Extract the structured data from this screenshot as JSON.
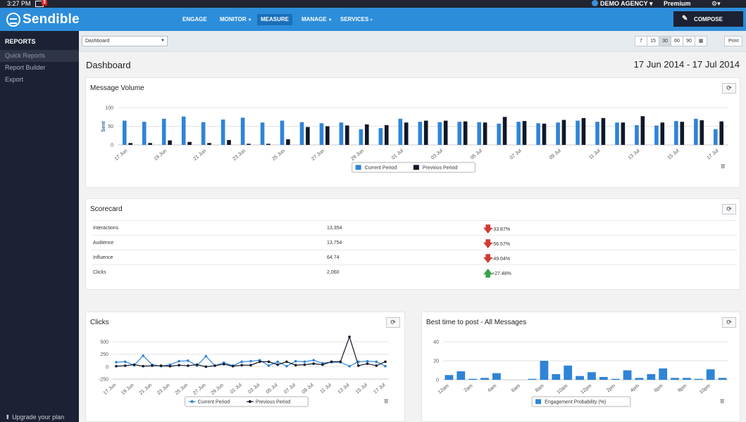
{
  "system": {
    "time": "3:27 PM",
    "mail_count": "3",
    "agency": "DEMO AGENCY",
    "plan": "Premium"
  },
  "nav": {
    "logo": "Sendible",
    "items": [
      {
        "label": "ENGAGE",
        "caret": false
      },
      {
        "label": "MONITOR",
        "caret": true
      },
      {
        "label": "MEASURE",
        "caret": false
      },
      {
        "label": "MANAGE",
        "caret": true
      },
      {
        "label": "SERVICES",
        "caret": false
      }
    ],
    "active": "MEASURE",
    "services_plus": "+",
    "compose_label": "COMPOSE"
  },
  "sidebar": {
    "title": "REPORTS",
    "items": [
      "Quick Reports",
      "Report Builder",
      "Export"
    ],
    "active": "Quick Reports",
    "upgrade_label": "Upgrade your plan"
  },
  "filter": {
    "selected": "Dashboard",
    "ranges": [
      "7",
      "15",
      "30",
      "60",
      "90"
    ],
    "active_range": "30",
    "print_label": "Print"
  },
  "header": {
    "title": "Dashboard",
    "date_range": "17 Jun 2014 - 17 Jul 2014"
  },
  "panels": {
    "message_volume": {
      "title": "Message Volume"
    },
    "scorecard": {
      "title": "Scorecard"
    },
    "clicks": {
      "title": "Clicks"
    },
    "best_time": {
      "title": "Best time to post - All Messages"
    }
  },
  "scorecard": [
    {
      "metric": "Interactions",
      "value": "13,354",
      "change": "-33.87%",
      "direction": "down"
    },
    {
      "metric": "Audience",
      "value": "13,754",
      "change": "-56.57%",
      "direction": "down"
    },
    {
      "metric": "Influence",
      "value": "64.74",
      "change": "-49.04%",
      "direction": "down"
    },
    {
      "metric": "Clicks",
      "value": "2,060",
      "change": "+27.48%",
      "direction": "up"
    }
  ],
  "colors": {
    "current": "#2f84d6",
    "previous": "#101828",
    "brand": "#2c8ddb",
    "sidebar": "#1c2233"
  },
  "chart_data": [
    {
      "type": "bar",
      "ylabel": "Sent",
      "ylim": [
        0,
        100
      ],
      "yticks": [
        0,
        50,
        100
      ],
      "categories": [
        "17 Jun",
        "18 Jun",
        "19 Jun",
        "20 Jun",
        "21 Jun",
        "22 Jun",
        "23 Jun",
        "24 Jun",
        "25 Jun",
        "26 Jun",
        "27 Jun",
        "28 Jun",
        "29 Jun",
        "30 Jun",
        "01 Jul",
        "02 Jul",
        "03 Jul",
        "04 Jul",
        "05 Jul",
        "06 Jul",
        "07 Jul",
        "08 Jul",
        "09 Jul",
        "10 Jul",
        "11 Jul",
        "12 Jul",
        "13 Jul",
        "14 Jul",
        "15 Jul",
        "16 Jul",
        "17 Jul"
      ],
      "xtick_labels": [
        "17 Jun",
        "19 Jun",
        "21 Jun",
        "23 Jun",
        "25 Jun",
        "27 Jun",
        "29 Jun",
        "01 Jul",
        "03 Jul",
        "05 Jul",
        "07 Jul",
        "09 Jul",
        "11 Jul",
        "13 Jul",
        "15 Jul",
        "17 Jul"
      ],
      "series": [
        {
          "name": "Current Period",
          "values": [
            65,
            62,
            70,
            76,
            61,
            68,
            73,
            60,
            65,
            61,
            58,
            60,
            42,
            45,
            70,
            62,
            61,
            62,
            61,
            57,
            62,
            58,
            60,
            65,
            62,
            60,
            53,
            52,
            64,
            70,
            42
          ]
        },
        {
          "name": "Previous Period",
          "values": [
            5,
            5,
            12,
            8,
            5,
            13,
            3,
            3,
            15,
            48,
            50,
            52,
            55,
            53,
            60,
            65,
            65,
            63,
            60,
            75,
            64,
            57,
            67,
            72,
            72,
            60,
            77,
            60,
            62,
            66,
            63
          ]
        }
      ],
      "legend": "bottom-center"
    },
    {
      "type": "line",
      "ylim": [
        -250,
        500
      ],
      "yticks": [
        -250,
        0,
        250,
        500
      ],
      "categories": [
        "17 Jun",
        "18 Jun",
        "19 Jun",
        "20 Jun",
        "21 Jun",
        "22 Jun",
        "23 Jun",
        "24 Jun",
        "25 Jun",
        "26 Jun",
        "27 Jun",
        "28 Jun",
        "29 Jun",
        "30 Jun",
        "01 Jul",
        "02 Jul",
        "03 Jul",
        "04 Jul",
        "05 Jul",
        "06 Jul",
        "07 Jul",
        "08 Jul",
        "09 Jul",
        "10 Jul",
        "11 Jul",
        "12 Jul",
        "13 Jul",
        "14 Jul",
        "15 Jul",
        "16 Jul",
        "17 Jul"
      ],
      "xtick_labels": [
        "17 Jun",
        "19 Jun",
        "21 Jun",
        "23 Jun",
        "25 Jun",
        "27 Jun",
        "29 Jun",
        "01 Jul",
        "03 Jul",
        "05 Jul",
        "07 Jul",
        "09 Jul",
        "11 Jul",
        "13 Jul",
        "15 Jul",
        "17 Jul"
      ],
      "series": [
        {
          "name": "Current Period",
          "values": [
            90,
            100,
            30,
            220,
            40,
            10,
            40,
            110,
            120,
            20,
            210,
            20,
            80,
            20,
            100,
            110,
            130,
            20,
            100,
            10,
            110,
            100,
            130,
            70,
            90,
            90,
            10,
            100,
            110,
            100,
            10
          ]
        },
        {
          "name": "Previous Period",
          "values": [
            10,
            20,
            40,
            10,
            20,
            20,
            10,
            30,
            20,
            40,
            0,
            20,
            50,
            10,
            30,
            30,
            100,
            100,
            40,
            100,
            30,
            40,
            60,
            40,
            100,
            100,
            600,
            20,
            60,
            20,
            100
          ]
        }
      ],
      "legend": "bottom-center"
    },
    {
      "type": "bar",
      "ylim": [
        0,
        40
      ],
      "yticks": [
        0,
        20,
        40
      ],
      "categories": [
        "12am",
        "1am",
        "2am",
        "3am",
        "4am",
        "5am",
        "6am",
        "7am",
        "8am",
        "9am",
        "10am",
        "11am",
        "12pm",
        "1pm",
        "2pm",
        "3pm",
        "4pm",
        "5pm",
        "6pm",
        "7pm",
        "8pm",
        "9pm",
        "10pm",
        "11pm"
      ],
      "xtick_labels": [
        "12am",
        "2am",
        "4am",
        "6am",
        "8am",
        "10am",
        "12pm",
        "2pm",
        "4pm",
        "6pm",
        "8pm",
        "10pm"
      ],
      "series": [
        {
          "name": "Engagement Probability (%)",
          "values": [
            5,
            9,
            1,
            2,
            7,
            0,
            0,
            1,
            20,
            6,
            15,
            4,
            8,
            3,
            1,
            10,
            2,
            6,
            12,
            2,
            2,
            1,
            11,
            2
          ]
        }
      ],
      "legend": "bottom-center"
    }
  ]
}
